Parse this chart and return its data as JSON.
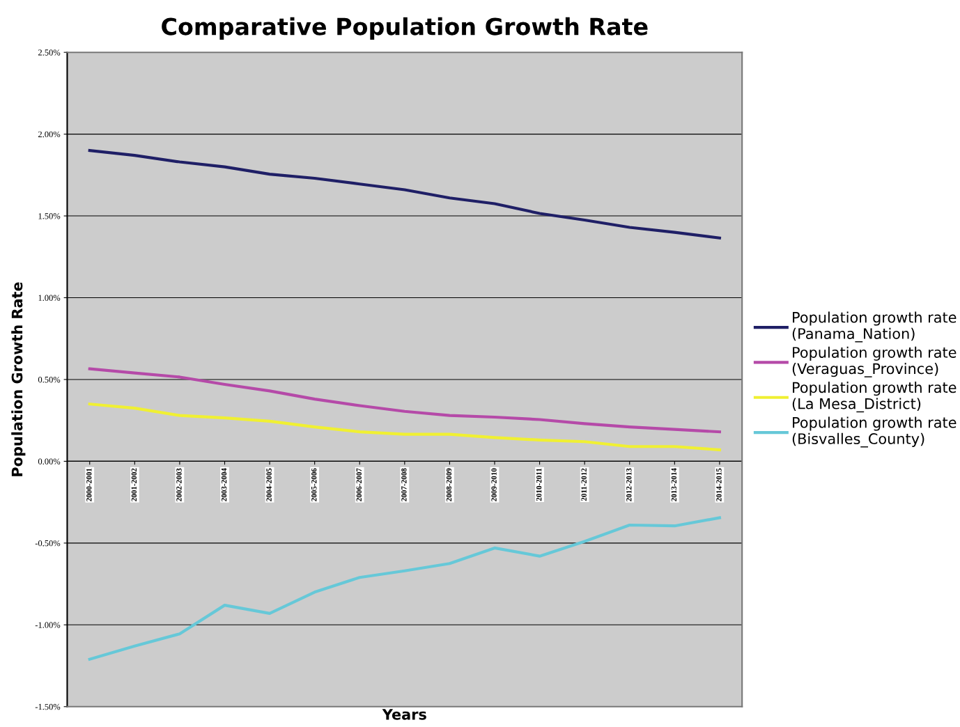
{
  "chart_data": {
    "type": "line",
    "title": "Comparative Population Growth Rate",
    "xlabel": "Years",
    "ylabel": "Population Growth Rate",
    "categories": [
      "2000-2001",
      "2001-2002",
      "2002-2003",
      "2003-2004",
      "2004-2005",
      "2005-2006",
      "2006-2007",
      "2007-2008",
      "2008-2009",
      "2009-2010",
      "2010-2011",
      "2011-2012",
      "2012-2013",
      "2013-2014",
      "2014-2015"
    ],
    "series": [
      {
        "name": "Population growth rate (Panama_Nation)",
        "color": "#1f1f66",
        "values": [
          1.9,
          1.87,
          1.83,
          1.8,
          1.755,
          1.73,
          1.695,
          1.66,
          1.61,
          1.575,
          1.515,
          1.475,
          1.43,
          1.4,
          1.365
        ]
      },
      {
        "name": "Population growth rate (Veraguas_Province)",
        "color": "#b54aa8",
        "values": [
          0.565,
          0.54,
          0.515,
          0.47,
          0.43,
          0.38,
          0.34,
          0.305,
          0.28,
          0.27,
          0.255,
          0.23,
          0.21,
          0.195,
          0.18
        ]
      },
      {
        "name": "Population growth rate (La Mesa_District)",
        "color": "#f0f032",
        "values": [
          0.35,
          0.325,
          0.28,
          0.265,
          0.245,
          0.21,
          0.18,
          0.165,
          0.165,
          0.145,
          0.13,
          0.12,
          0.09,
          0.09,
          0.07
        ]
      },
      {
        "name": "Population growth rate (Bisvalles_County)",
        "color": "#66c8d8",
        "values": [
          -1.21,
          -1.13,
          -1.055,
          -0.88,
          -0.93,
          -0.8,
          -0.71,
          -0.67,
          -0.625,
          -0.53,
          -0.58,
          -0.49,
          -0.39,
          -0.395,
          -0.345
        ]
      }
    ],
    "ylim": [
      -1.5,
      2.5
    ],
    "yticks": [
      {
        "value": -1.5,
        "label": "-1.50%"
      },
      {
        "value": -1.0,
        "label": "-1.00%"
      },
      {
        "value": -0.5,
        "label": "-0.50%"
      },
      {
        "value": 0,
        "label": "0.00%"
      },
      {
        "value": 0.5,
        "label": "0.50%"
      },
      {
        "value": 1.0,
        "label": "1.00%"
      },
      {
        "value": 1.5,
        "label": "1.50%"
      },
      {
        "value": 2.0,
        "label": "2.00%"
      },
      {
        "value": 2.5,
        "label": "2.50%"
      }
    ],
    "grid": "y",
    "legend": "right",
    "marker": "none",
    "line_style": "solid"
  }
}
